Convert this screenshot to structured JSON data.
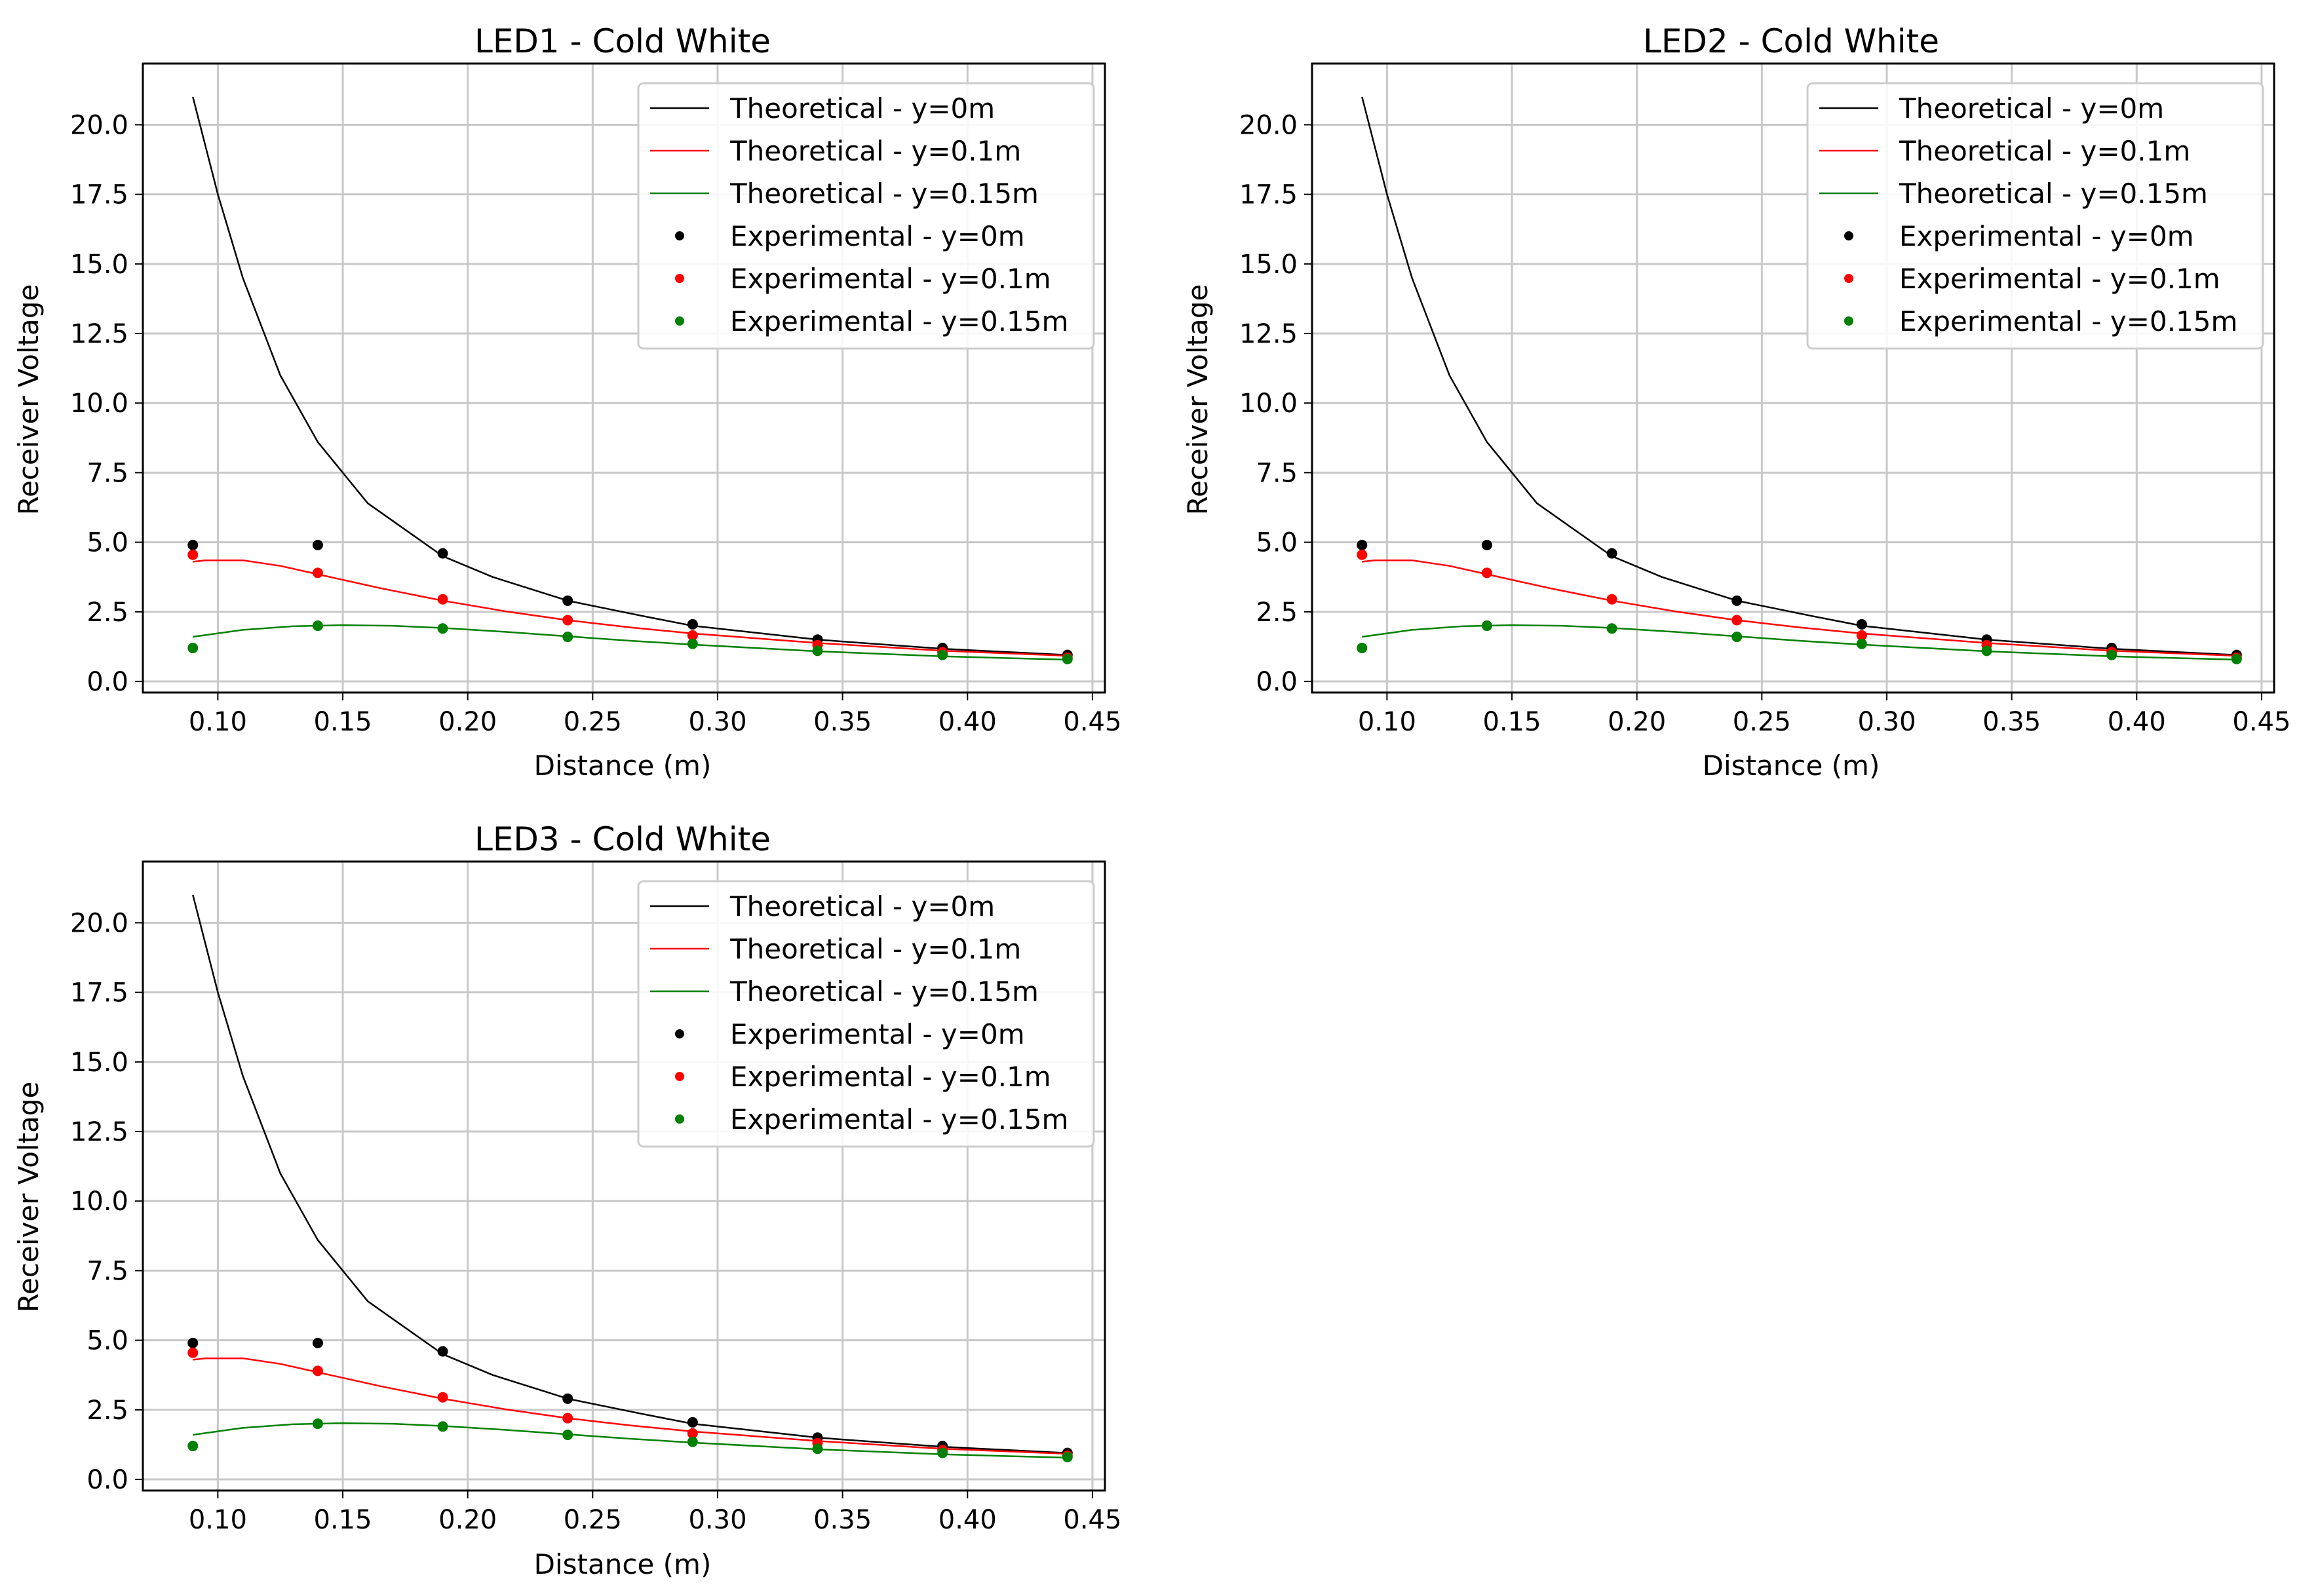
{
  "chart_data": [
    {
      "type": "line",
      "title": "LED1 - Cold White",
      "xlabel": "Distance (m)",
      "ylabel": "Receiver Voltage",
      "xlim": [
        0.07,
        0.455
      ],
      "ylim": [
        -0.4,
        22.2
      ],
      "grid": true,
      "legend_position": "top-right",
      "xticks": [
        "0.10",
        "0.15",
        "0.20",
        "0.25",
        "0.30",
        "0.35",
        "0.40",
        "0.45"
      ],
      "yticks": [
        "0.0",
        "2.5",
        "5.0",
        "7.5",
        "10.0",
        "12.5",
        "15.0",
        "17.5",
        "20.0"
      ],
      "series": [
        {
          "name": "Theoretical - y=0m",
          "kind": "line",
          "color": "#000000",
          "x": [
            0.09,
            0.1,
            0.11,
            0.125,
            0.14,
            0.16,
            0.19,
            0.21,
            0.24,
            0.27,
            0.29,
            0.34,
            0.39,
            0.44
          ],
          "y": [
            21.0,
            17.5,
            14.5,
            11.0,
            8.6,
            6.4,
            4.5,
            3.75,
            2.9,
            2.35,
            2.0,
            1.5,
            1.17,
            0.95
          ]
        },
        {
          "name": "Theoretical - y=0.1m",
          "kind": "line",
          "color": "#ff0000",
          "x": [
            0.09,
            0.095,
            0.11,
            0.125,
            0.14,
            0.165,
            0.19,
            0.215,
            0.24,
            0.265,
            0.29,
            0.34,
            0.39,
            0.44
          ],
          "y": [
            4.3,
            4.35,
            4.35,
            4.15,
            3.85,
            3.35,
            2.9,
            2.52,
            2.2,
            1.94,
            1.72,
            1.38,
            1.1,
            0.92
          ]
        },
        {
          "name": "Theoretical - y=0.15m",
          "kind": "line",
          "color": "#008000",
          "x": [
            0.09,
            0.11,
            0.13,
            0.15,
            0.17,
            0.19,
            0.215,
            0.24,
            0.265,
            0.29,
            0.34,
            0.39,
            0.44
          ],
          "y": [
            1.6,
            1.85,
            1.98,
            2.02,
            2.0,
            1.92,
            1.78,
            1.62,
            1.46,
            1.32,
            1.08,
            0.9,
            0.78
          ]
        },
        {
          "name": "Experimental - y=0m",
          "kind": "scatter",
          "color": "#000000",
          "x": [
            0.09,
            0.14,
            0.19,
            0.24,
            0.29,
            0.34,
            0.39,
            0.44
          ],
          "y": [
            4.9,
            4.9,
            4.6,
            2.9,
            2.05,
            1.5,
            1.2,
            0.95
          ]
        },
        {
          "name": "Experimental - y=0.1m",
          "kind": "scatter",
          "color": "#ff0000",
          "x": [
            0.09,
            0.14,
            0.19,
            0.24,
            0.29,
            0.34,
            0.39,
            0.44
          ],
          "y": [
            4.55,
            3.9,
            2.95,
            2.2,
            1.65,
            1.3,
            1.05,
            0.85
          ]
        },
        {
          "name": "Experimental - y=0.15m",
          "kind": "scatter",
          "color": "#008000",
          "x": [
            0.09,
            0.14,
            0.19,
            0.24,
            0.29,
            0.34,
            0.39,
            0.44
          ],
          "y": [
            1.2,
            2.0,
            1.9,
            1.6,
            1.35,
            1.1,
            0.95,
            0.8
          ]
        }
      ]
    },
    {
      "type": "line",
      "title": "LED2 - Cold White",
      "xlabel": "Distance (m)",
      "ylabel": "Receiver Voltage",
      "xlim": [
        0.07,
        0.455
      ],
      "ylim": [
        -0.4,
        22.2
      ],
      "grid": true,
      "legend_position": "top-right",
      "xticks": [
        "0.10",
        "0.15",
        "0.20",
        "0.25",
        "0.30",
        "0.35",
        "0.40",
        "0.45"
      ],
      "yticks": [
        "0.0",
        "2.5",
        "5.0",
        "7.5",
        "10.0",
        "12.5",
        "15.0",
        "17.5",
        "20.0"
      ],
      "series": [
        {
          "name": "Theoretical - y=0m",
          "kind": "line",
          "color": "#000000",
          "x": [
            0.09,
            0.1,
            0.11,
            0.125,
            0.14,
            0.16,
            0.19,
            0.21,
            0.24,
            0.27,
            0.29,
            0.34,
            0.39,
            0.44
          ],
          "y": [
            21.0,
            17.5,
            14.5,
            11.0,
            8.6,
            6.4,
            4.5,
            3.75,
            2.9,
            2.35,
            2.0,
            1.5,
            1.17,
            0.95
          ]
        },
        {
          "name": "Theoretical - y=0.1m",
          "kind": "line",
          "color": "#ff0000",
          "x": [
            0.09,
            0.095,
            0.11,
            0.125,
            0.14,
            0.165,
            0.19,
            0.215,
            0.24,
            0.265,
            0.29,
            0.34,
            0.39,
            0.44
          ],
          "y": [
            4.3,
            4.35,
            4.35,
            4.15,
            3.85,
            3.35,
            2.9,
            2.52,
            2.2,
            1.94,
            1.72,
            1.38,
            1.1,
            0.92
          ]
        },
        {
          "name": "Theoretical - y=0.15m",
          "kind": "line",
          "color": "#008000",
          "x": [
            0.09,
            0.11,
            0.13,
            0.15,
            0.17,
            0.19,
            0.215,
            0.24,
            0.265,
            0.29,
            0.34,
            0.39,
            0.44
          ],
          "y": [
            1.6,
            1.85,
            1.98,
            2.02,
            2.0,
            1.92,
            1.78,
            1.62,
            1.46,
            1.32,
            1.08,
            0.9,
            0.78
          ]
        },
        {
          "name": "Experimental - y=0m",
          "kind": "scatter",
          "color": "#000000",
          "x": [
            0.09,
            0.14,
            0.19,
            0.24,
            0.29,
            0.34,
            0.39,
            0.44
          ],
          "y": [
            4.9,
            4.9,
            4.6,
            2.9,
            2.05,
            1.5,
            1.2,
            0.95
          ]
        },
        {
          "name": "Experimental - y=0.1m",
          "kind": "scatter",
          "color": "#ff0000",
          "x": [
            0.09,
            0.14,
            0.19,
            0.24,
            0.29,
            0.34,
            0.39,
            0.44
          ],
          "y": [
            4.55,
            3.9,
            2.95,
            2.2,
            1.65,
            1.3,
            1.05,
            0.85
          ]
        },
        {
          "name": "Experimental - y=0.15m",
          "kind": "scatter",
          "color": "#008000",
          "x": [
            0.09,
            0.14,
            0.19,
            0.24,
            0.29,
            0.34,
            0.39,
            0.44
          ],
          "y": [
            1.2,
            2.0,
            1.9,
            1.6,
            1.35,
            1.1,
            0.95,
            0.8
          ]
        }
      ]
    },
    {
      "type": "line",
      "title": "LED3 - Cold White",
      "xlabel": "Distance (m)",
      "ylabel": "Receiver Voltage",
      "xlim": [
        0.07,
        0.455
      ],
      "ylim": [
        -0.4,
        22.2
      ],
      "grid": true,
      "legend_position": "top-right",
      "xticks": [
        "0.10",
        "0.15",
        "0.20",
        "0.25",
        "0.30",
        "0.35",
        "0.40",
        "0.45"
      ],
      "yticks": [
        "0.0",
        "2.5",
        "5.0",
        "7.5",
        "10.0",
        "12.5",
        "15.0",
        "17.5",
        "20.0"
      ],
      "series": [
        {
          "name": "Theoretical - y=0m",
          "kind": "line",
          "color": "#000000",
          "x": [
            0.09,
            0.1,
            0.11,
            0.125,
            0.14,
            0.16,
            0.19,
            0.21,
            0.24,
            0.27,
            0.29,
            0.34,
            0.39,
            0.44
          ],
          "y": [
            21.0,
            17.5,
            14.5,
            11.0,
            8.6,
            6.4,
            4.5,
            3.75,
            2.9,
            2.35,
            2.0,
            1.5,
            1.17,
            0.95
          ]
        },
        {
          "name": "Theoretical - y=0.1m",
          "kind": "line",
          "color": "#ff0000",
          "x": [
            0.09,
            0.095,
            0.11,
            0.125,
            0.14,
            0.165,
            0.19,
            0.215,
            0.24,
            0.265,
            0.29,
            0.34,
            0.39,
            0.44
          ],
          "y": [
            4.3,
            4.35,
            4.35,
            4.15,
            3.85,
            3.35,
            2.9,
            2.52,
            2.2,
            1.94,
            1.72,
            1.38,
            1.1,
            0.92
          ]
        },
        {
          "name": "Theoretical - y=0.15m",
          "kind": "line",
          "color": "#008000",
          "x": [
            0.09,
            0.11,
            0.13,
            0.15,
            0.17,
            0.19,
            0.215,
            0.24,
            0.265,
            0.29,
            0.34,
            0.39,
            0.44
          ],
          "y": [
            1.6,
            1.85,
            1.98,
            2.02,
            2.0,
            1.92,
            1.78,
            1.62,
            1.46,
            1.32,
            1.08,
            0.9,
            0.78
          ]
        },
        {
          "name": "Experimental - y=0m",
          "kind": "scatter",
          "color": "#000000",
          "x": [
            0.09,
            0.14,
            0.19,
            0.24,
            0.29,
            0.34,
            0.39,
            0.44
          ],
          "y": [
            4.9,
            4.9,
            4.6,
            2.9,
            2.05,
            1.5,
            1.2,
            0.95
          ]
        },
        {
          "name": "Experimental - y=0.1m",
          "kind": "scatter",
          "color": "#ff0000",
          "x": [
            0.09,
            0.14,
            0.19,
            0.24,
            0.29,
            0.34,
            0.39,
            0.44
          ],
          "y": [
            4.55,
            3.9,
            2.95,
            2.2,
            1.65,
            1.3,
            1.05,
            0.85
          ]
        },
        {
          "name": "Experimental - y=0.15m",
          "kind": "scatter",
          "color": "#008000",
          "x": [
            0.09,
            0.14,
            0.19,
            0.24,
            0.29,
            0.34,
            0.39,
            0.44
          ],
          "y": [
            1.2,
            2.0,
            1.9,
            1.6,
            1.35,
            1.1,
            0.95,
            0.8
          ]
        }
      ]
    }
  ]
}
